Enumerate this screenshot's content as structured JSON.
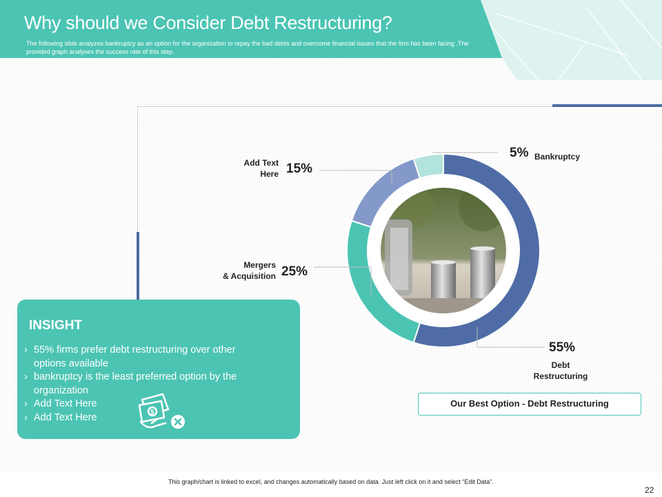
{
  "header": {
    "title": "Why should we Consider Debt Restructuring?",
    "subtitle": "The following slide analyzes bankruptcy as an option  for the organization to repay the bad debts and overcome financial issues that the firm has been facing .The provided graph analyses the success rate of this step."
  },
  "chart_data": {
    "type": "pie",
    "variant": "donut",
    "slices": [
      {
        "label": "Debt Restructuring",
        "value": 55,
        "value_label": "55%",
        "color": "#4f6ca6"
      },
      {
        "label": "Mergers & Acquisition",
        "value": 25,
        "value_label": "25%",
        "color": "#4cc4b3"
      },
      {
        "label": "Add Text Here",
        "value": 15,
        "value_label": "15%",
        "color": "#8399c9"
      },
      {
        "label": "Bankruptcy",
        "value": 5,
        "value_label": "5%",
        "color": "#b3e3dd"
      }
    ],
    "center_image": "stacked-coins-photo"
  },
  "labels": {
    "bankruptcy_pct": "5%",
    "bankruptcy": "Bankruptcy",
    "addtext_pct": "15%",
    "addtext_line1": "Add Text",
    "addtext_line2": "Here",
    "mergers_pct": "25%",
    "mergers_line1": "Mergers",
    "mergers_line2": "& Acquisition",
    "debt_pct": "55%",
    "debt_line1": "Debt",
    "debt_line2": "Restructuring"
  },
  "insight": {
    "title": "INSIGHT",
    "items": [
      {
        "line1": "55% firms prefer debt restructuring  over other",
        "line2": "options available"
      },
      {
        "line1": "bankruptcy  is the least preferred option by the",
        "line2": "organization"
      },
      {
        "line1": "Add Text Here",
        "line2": ""
      },
      {
        "line1": "Add Text Here",
        "line2": ""
      }
    ],
    "bullet": "›",
    "icon": "money-cancel-icon"
  },
  "best_option": "Our Best Option - Debt Restructuring",
  "footer_note": "This graph/chart is linked to excel, and changes automatically based on data. Just left click on it and select “Edit Data”.",
  "page_number": "22"
}
